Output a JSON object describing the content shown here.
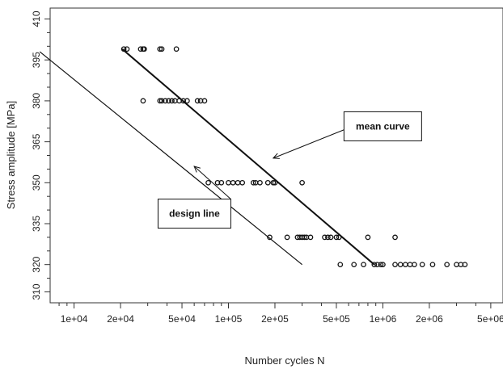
{
  "chart_data": {
    "type": "scatter",
    "title": "",
    "xlabel": "Number cycles N",
    "ylabel": "Stress amplitude [MPa]",
    "x_scale": "log",
    "xlim": [
      7000,
      6000000
    ],
    "ylim": [
      306,
      414
    ],
    "x_ticks": [
      10000,
      20000,
      50000,
      100000,
      200000,
      500000,
      1000000,
      2000000,
      5000000
    ],
    "x_tick_labels": [
      "1e+04",
      "2e+04",
      "5e+04",
      "1e+05",
      "2e+05",
      "5e+05",
      "1e+06",
      "2e+06",
      "5e+06"
    ],
    "y_ticks": [
      310,
      320,
      335,
      350,
      365,
      380,
      395,
      410
    ],
    "y_tick_labels": [
      "310",
      "320",
      "335",
      "350",
      "365",
      "380",
      "395",
      "410"
    ],
    "grid": false,
    "series": [
      {
        "marker": "open-circle",
        "points": [
          [
            21000,
            399
          ],
          [
            22000,
            399
          ],
          [
            27000,
            399
          ],
          [
            28000,
            399
          ],
          [
            28500,
            399
          ],
          [
            36000,
            399
          ],
          [
            37000,
            399
          ],
          [
            46000,
            399
          ],
          [
            28000,
            380
          ],
          [
            36000,
            380
          ],
          [
            37000,
            380
          ],
          [
            39000,
            380
          ],
          [
            41000,
            380
          ],
          [
            43000,
            380
          ],
          [
            45000,
            380
          ],
          [
            48000,
            380
          ],
          [
            51000,
            380
          ],
          [
            54000,
            380
          ],
          [
            63000,
            380
          ],
          [
            66000,
            380
          ],
          [
            70000,
            380
          ],
          [
            74000,
            350
          ],
          [
            85000,
            350
          ],
          [
            90000,
            350
          ],
          [
            100000,
            350
          ],
          [
            107000,
            350
          ],
          [
            115000,
            350
          ],
          [
            123000,
            350
          ],
          [
            145000,
            350
          ],
          [
            150000,
            350
          ],
          [
            160000,
            350
          ],
          [
            180000,
            350
          ],
          [
            195000,
            350
          ],
          [
            200000,
            350
          ],
          [
            300000,
            350
          ],
          [
            185000,
            330
          ],
          [
            240000,
            330
          ],
          [
            280000,
            330
          ],
          [
            290000,
            330
          ],
          [
            300000,
            330
          ],
          [
            310000,
            330
          ],
          [
            320000,
            330
          ],
          [
            340000,
            330
          ],
          [
            420000,
            330
          ],
          [
            440000,
            330
          ],
          [
            460000,
            330
          ],
          [
            500000,
            330
          ],
          [
            520000,
            330
          ],
          [
            800000,
            330
          ],
          [
            1200000,
            330
          ],
          [
            530000,
            320
          ],
          [
            650000,
            320
          ],
          [
            750000,
            320
          ],
          [
            880000,
            320
          ],
          [
            920000,
            320
          ],
          [
            970000,
            320
          ],
          [
            1000000,
            320
          ],
          [
            1200000,
            320
          ],
          [
            1300000,
            320
          ],
          [
            1400000,
            320
          ],
          [
            1500000,
            320
          ],
          [
            1600000,
            320
          ],
          [
            1800000,
            320
          ],
          [
            2100000,
            320
          ],
          [
            2600000,
            320
          ],
          [
            3000000,
            320
          ],
          [
            3200000,
            320
          ],
          [
            3400000,
            320
          ]
        ]
      },
      {
        "style": "line",
        "label": "mean curve",
        "points": [
          [
            20500,
            399
          ],
          [
            880000,
            320
          ]
        ]
      },
      {
        "style": "line",
        "label": "design line",
        "points": [
          [
            6000,
            398
          ],
          [
            300000,
            320
          ]
        ]
      }
    ],
    "annotations": [
      {
        "text": "mean curve",
        "box_at": [
          560000,
          376
        ],
        "arrow_to": [
          195000,
          359
        ]
      },
      {
        "text": "design line",
        "box_at": [
          35000,
          344
        ],
        "arrow_to": [
          60000,
          356
        ]
      }
    ]
  }
}
